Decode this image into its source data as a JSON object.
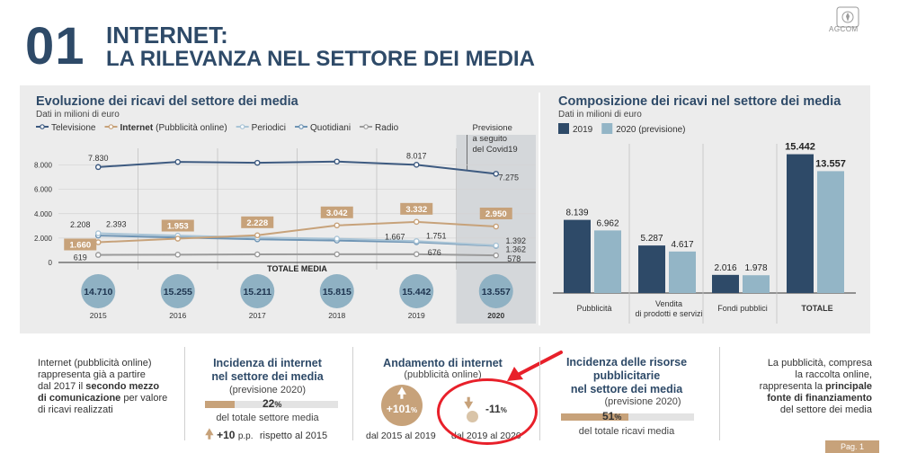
{
  "header": {
    "number": "01",
    "title_line1": "INTERNET:",
    "title_line2": "LA RILEVANZA NEL SETTORE DEI MEDIA",
    "logo_text": "AGCOM"
  },
  "colors": {
    "tv": "#3d5a80",
    "internet": "#c7a27a",
    "periodici": "#a9c4d6",
    "quotidiani": "#6e94b4",
    "radio": "#9b9b9b",
    "bar2019": "#2e4a68",
    "bar2020": "#93b5c6",
    "circle": "#8fb1c3"
  },
  "chart_data": [
    {
      "type": "line",
      "title": "Evoluzione dei ricavi del settore dei media",
      "subtitle": "Dati in milioni di euro",
      "x": [
        "2015",
        "2016",
        "2017",
        "2018",
        "2019",
        "2020"
      ],
      "ylim": [
        0,
        9000
      ],
      "yticks": [
        "0",
        "2.000",
        "4.000",
        "6.000",
        "8.000"
      ],
      "ytick_values": [
        0,
        2000,
        4000,
        6000,
        8000
      ],
      "forecast_label": [
        "Previsione",
        "a seguito",
        "del Covid19"
      ],
      "series": [
        {
          "name": "Televisione",
          "key": "tv",
          "values": [
            7830,
            8250,
            8180,
            8280,
            8017,
            7275
          ],
          "labels": {
            "0": "7.830",
            "4": "8.017",
            "5": "7.275"
          }
        },
        {
          "name": "(Pubblicità online)",
          "bold_name": "Internet",
          "key": "internet",
          "values": [
            1660,
            1953,
            2228,
            3042,
            3332,
            2950
          ],
          "labels": {
            "0": "1.660",
            "1": "1.953",
            "2": "2.228",
            "3": "3.042",
            "4": "3.332",
            "5": "2.950"
          }
        },
        {
          "name": "Periodici",
          "key": "periodici",
          "values": [
            2393,
            2200,
            2050,
            1950,
            1751,
            1392
          ],
          "labels": {
            "0": "2.393",
            "4": "1.751",
            "5": "1.392"
          }
        },
        {
          "name": "Quotidiani",
          "key": "quotidiani",
          "values": [
            2208,
            2050,
            1900,
            1800,
            1667,
            1362
          ],
          "labels": {
            "0": "2.208",
            "4": "1.667",
            "5": "1.362"
          }
        },
        {
          "name": "Radio",
          "key": "radio",
          "values": [
            619,
            640,
            660,
            670,
            676,
            578
          ],
          "labels": {
            "0": "619",
            "4": "676",
            "5": "578"
          }
        }
      ],
      "totals_label": "TOTALE MEDIA",
      "totals": [
        "14.710",
        "15.255",
        "15.211",
        "15.815",
        "15.442",
        "13.557"
      ],
      "grid": true
    },
    {
      "type": "bar",
      "title": "Composizione dei ricavi nel settore dei media",
      "subtitle": "Dati in milioni di euro",
      "categories": [
        "Pubblicità",
        "Vendita|di prodotti e servizi",
        "Fondi pubblici",
        "TOTALE"
      ],
      "series": [
        {
          "name": "2019",
          "key": "bar2019",
          "values": [
            8139,
            5287,
            2016,
            15442
          ],
          "labels": [
            "8.139",
            "5.287",
            "2.016",
            "15.442"
          ]
        },
        {
          "name": "2020 (previsione)",
          "key": "bar2020",
          "values": [
            6962,
            4617,
            1978,
            13557
          ],
          "labels": [
            "6.962",
            "4.617",
            "1.978",
            "13.557"
          ]
        }
      ],
      "ylim": [
        0,
        16000
      ]
    }
  ],
  "bottom": {
    "left_text": [
      "Internet (pubblicità online)",
      "rappresenta già a partire",
      "dal 2017 il |secondo mezzo",
      "|di comunicazione| per valore",
      "di ricavi realizzati"
    ],
    "incidenza": {
      "title1": "Incidenza di internet",
      "title2": "nel settore dei media",
      "sub": "(previsione 2020)",
      "value": "22",
      "value_unit": "%",
      "fraction": 0.22,
      "desc": "del totale settore media",
      "delta": "+10",
      "delta_unit": "p.p.",
      "delta_desc": "rispetto al 2015"
    },
    "andamento": {
      "title": "Andamento di internet",
      "sub": "(pubblicità online)",
      "up_value": "+101",
      "up_unit": "%",
      "up_label": "dal 2015 al 2019",
      "down_value": "-11",
      "down_unit": "%",
      "down_label": "dal 2019 al 2020"
    },
    "risorse": {
      "title1": "Incidenza delle risorse",
      "title2": "pubblicitarie",
      "title3": "nel settore dei media",
      "sub": "(previsione 2020)",
      "value": "51",
      "value_unit": "%",
      "fraction": 0.51,
      "desc": "del totale ricavi media"
    },
    "right_text": [
      "La pubblicità, compresa",
      "la raccolta online,",
      "rappresenta la |principale",
      "|fonte di finanziamento",
      "del settore dei media"
    ]
  },
  "page_tab": "Pag. 1"
}
